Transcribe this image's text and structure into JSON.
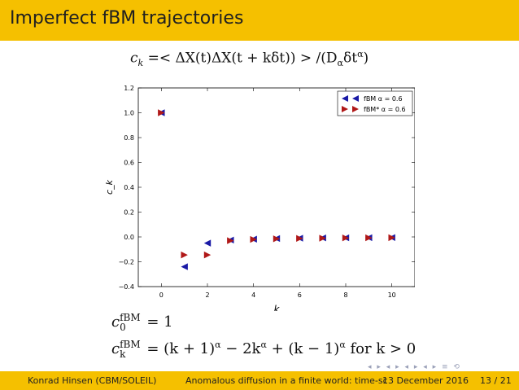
{
  "slide": {
    "title": "Imperfect fBM trajectories",
    "formula_top": {
      "lhs": "c",
      "lhs_sub": "k",
      "body": " =< ΔX(t)ΔX(t + kδt)) > /(D",
      "d_sub": "α",
      "tail": "δt",
      "tail_sup": "α",
      "close": ")"
    },
    "formula_c0": {
      "sym": "c",
      "sup": "fBM",
      "sub": "0",
      "rhs": " = 1"
    },
    "formula_ck": {
      "sym": "c",
      "sup": "fBM",
      "sub": "k",
      "rhs_a": " = (k + 1)",
      "sup_a": "α",
      "rhs_b": " − 2k",
      "sup_b": "α",
      "rhs_c": " + (k − 1)",
      "sup_c": "α",
      "rhs_d": " for k > 0"
    },
    "nav_symbols": "◂ ▸ ◂ ▸ ◂ ▸ ◂ ▸ ≡ ⟲",
    "footer": {
      "author": "Konrad Hinsen  (CBM/SOLEIL)",
      "talk": "Anomalous diffusion in a finite world: time-sc",
      "date": "13 December 2016",
      "page": "13 / 21"
    }
  },
  "chart_data": {
    "type": "scatter",
    "xlabel": "k",
    "ylabel": "c_k",
    "xlim": [
      -1,
      11
    ],
    "ylim": [
      -0.4,
      1.2
    ],
    "xticks": [
      "0",
      "2",
      "4",
      "6",
      "8",
      "10"
    ],
    "yticks": [
      "−0.4",
      "−0.2",
      "0.0",
      "0.2",
      "0.4",
      "0.6",
      "0.8",
      "1.0",
      "1.2"
    ],
    "legend_position": "top-right",
    "grid": false,
    "series": [
      {
        "name": "fBM α = 0.6",
        "marker": "left-triangle",
        "color": "#1a1aa6",
        "x": [
          0,
          1,
          2,
          3,
          4,
          5,
          6,
          7,
          8,
          9,
          10
        ],
        "y": [
          1.0,
          -0.24,
          -0.05,
          -0.025,
          -0.018,
          -0.013,
          -0.01,
          -0.008,
          -0.007,
          -0.006,
          -0.005
        ]
      },
      {
        "name": "fBM* α = 0.6",
        "marker": "right-triangle",
        "color": "#b01818",
        "x": [
          0,
          1,
          2,
          3,
          4,
          5,
          6,
          7,
          8,
          9,
          10
        ],
        "y": [
          1.0,
          -0.145,
          -0.145,
          -0.03,
          -0.02,
          -0.015,
          -0.012,
          -0.01,
          -0.008,
          -0.007,
          -0.006
        ]
      }
    ]
  }
}
